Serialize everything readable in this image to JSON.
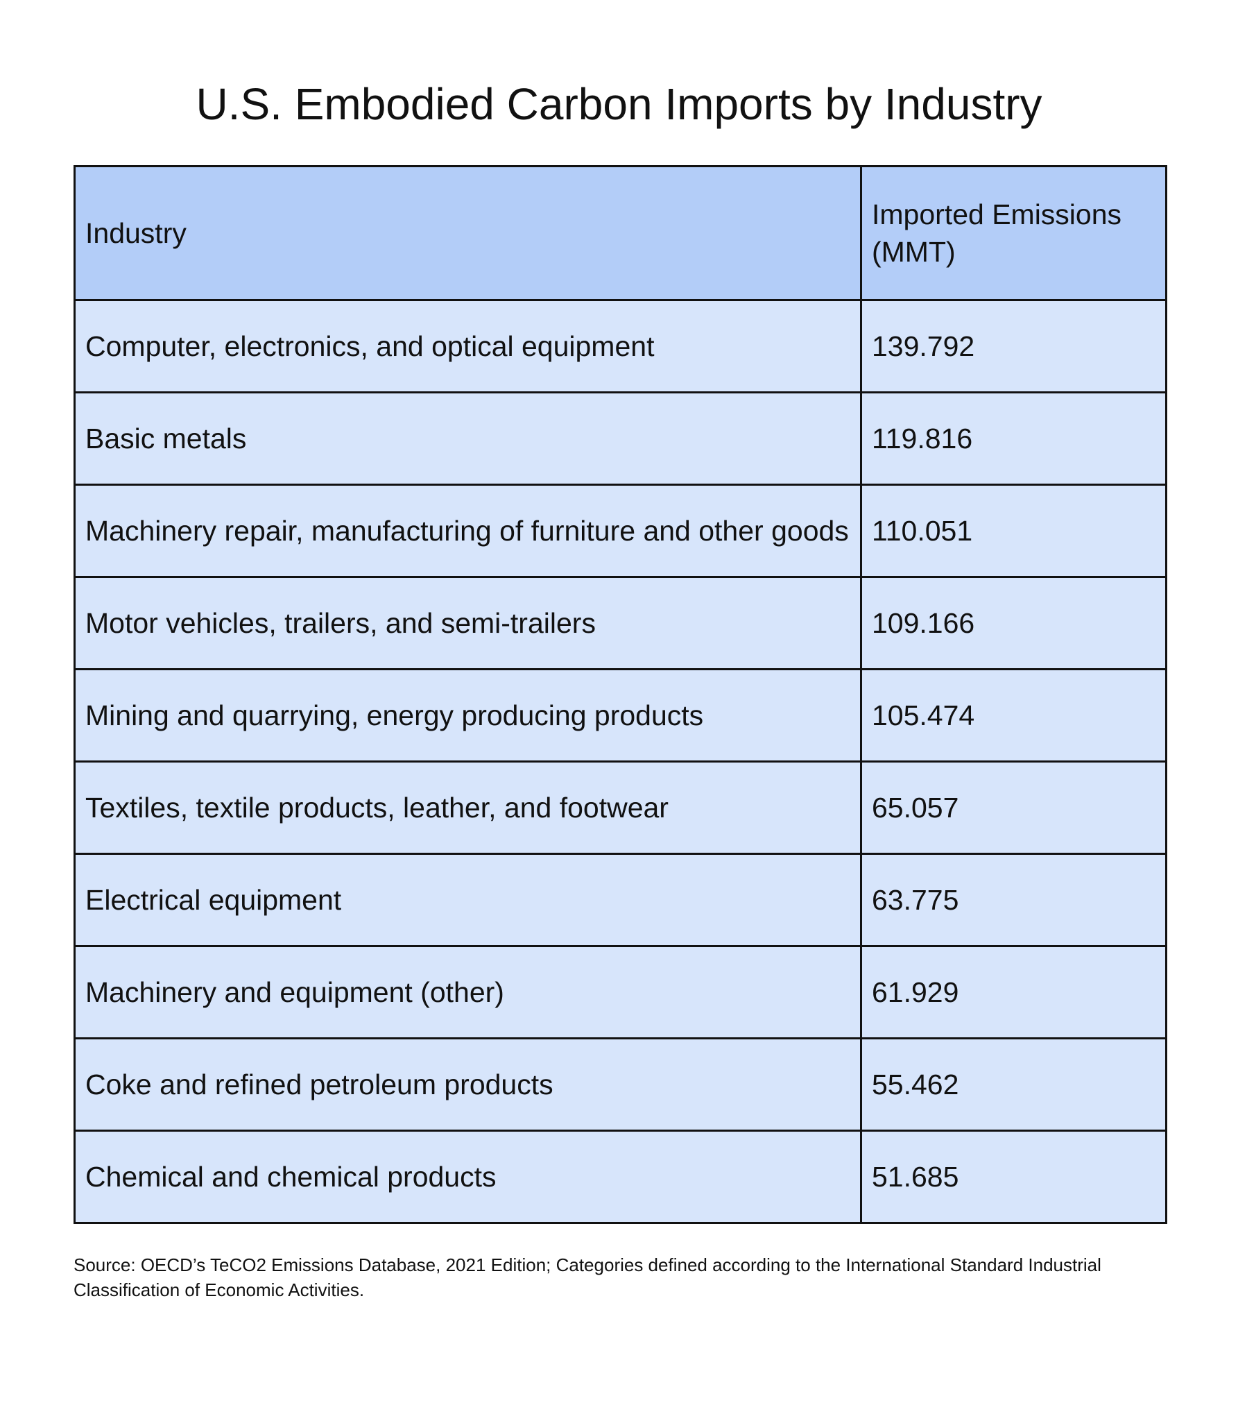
{
  "title": "U.S. Embodied Carbon Imports by Industry",
  "table": {
    "header": [
      "Industry",
      "Imported Emissions (MMT)"
    ],
    "rows": [
      [
        "Computer, electronics, and optical equipment",
        139.792
      ],
      [
        "Basic metals",
        119.816
      ],
      [
        "Machinery repair, manufacturing of furniture and other goods",
        110.051
      ],
      [
        "Motor vehicles, trailers, and semi-trailers",
        109.166
      ],
      [
        "Mining and quarrying, energy producing products",
        105.474
      ],
      [
        "Textiles, textile products, leather, and footwear",
        65.057
      ],
      [
        "Electrical equipment",
        63.775
      ],
      [
        "Machinery and equipment (other)",
        61.929
      ],
      [
        "Coke and refined petroleum products",
        55.462
      ],
      [
        "Chemical and chemical products",
        51.685
      ]
    ]
  },
  "source": "Source: OECD’s TeCO2 Emissions Database, 2021 Edition; Categories defined according to the International Standard Industrial Classification of Economic Activities."
}
